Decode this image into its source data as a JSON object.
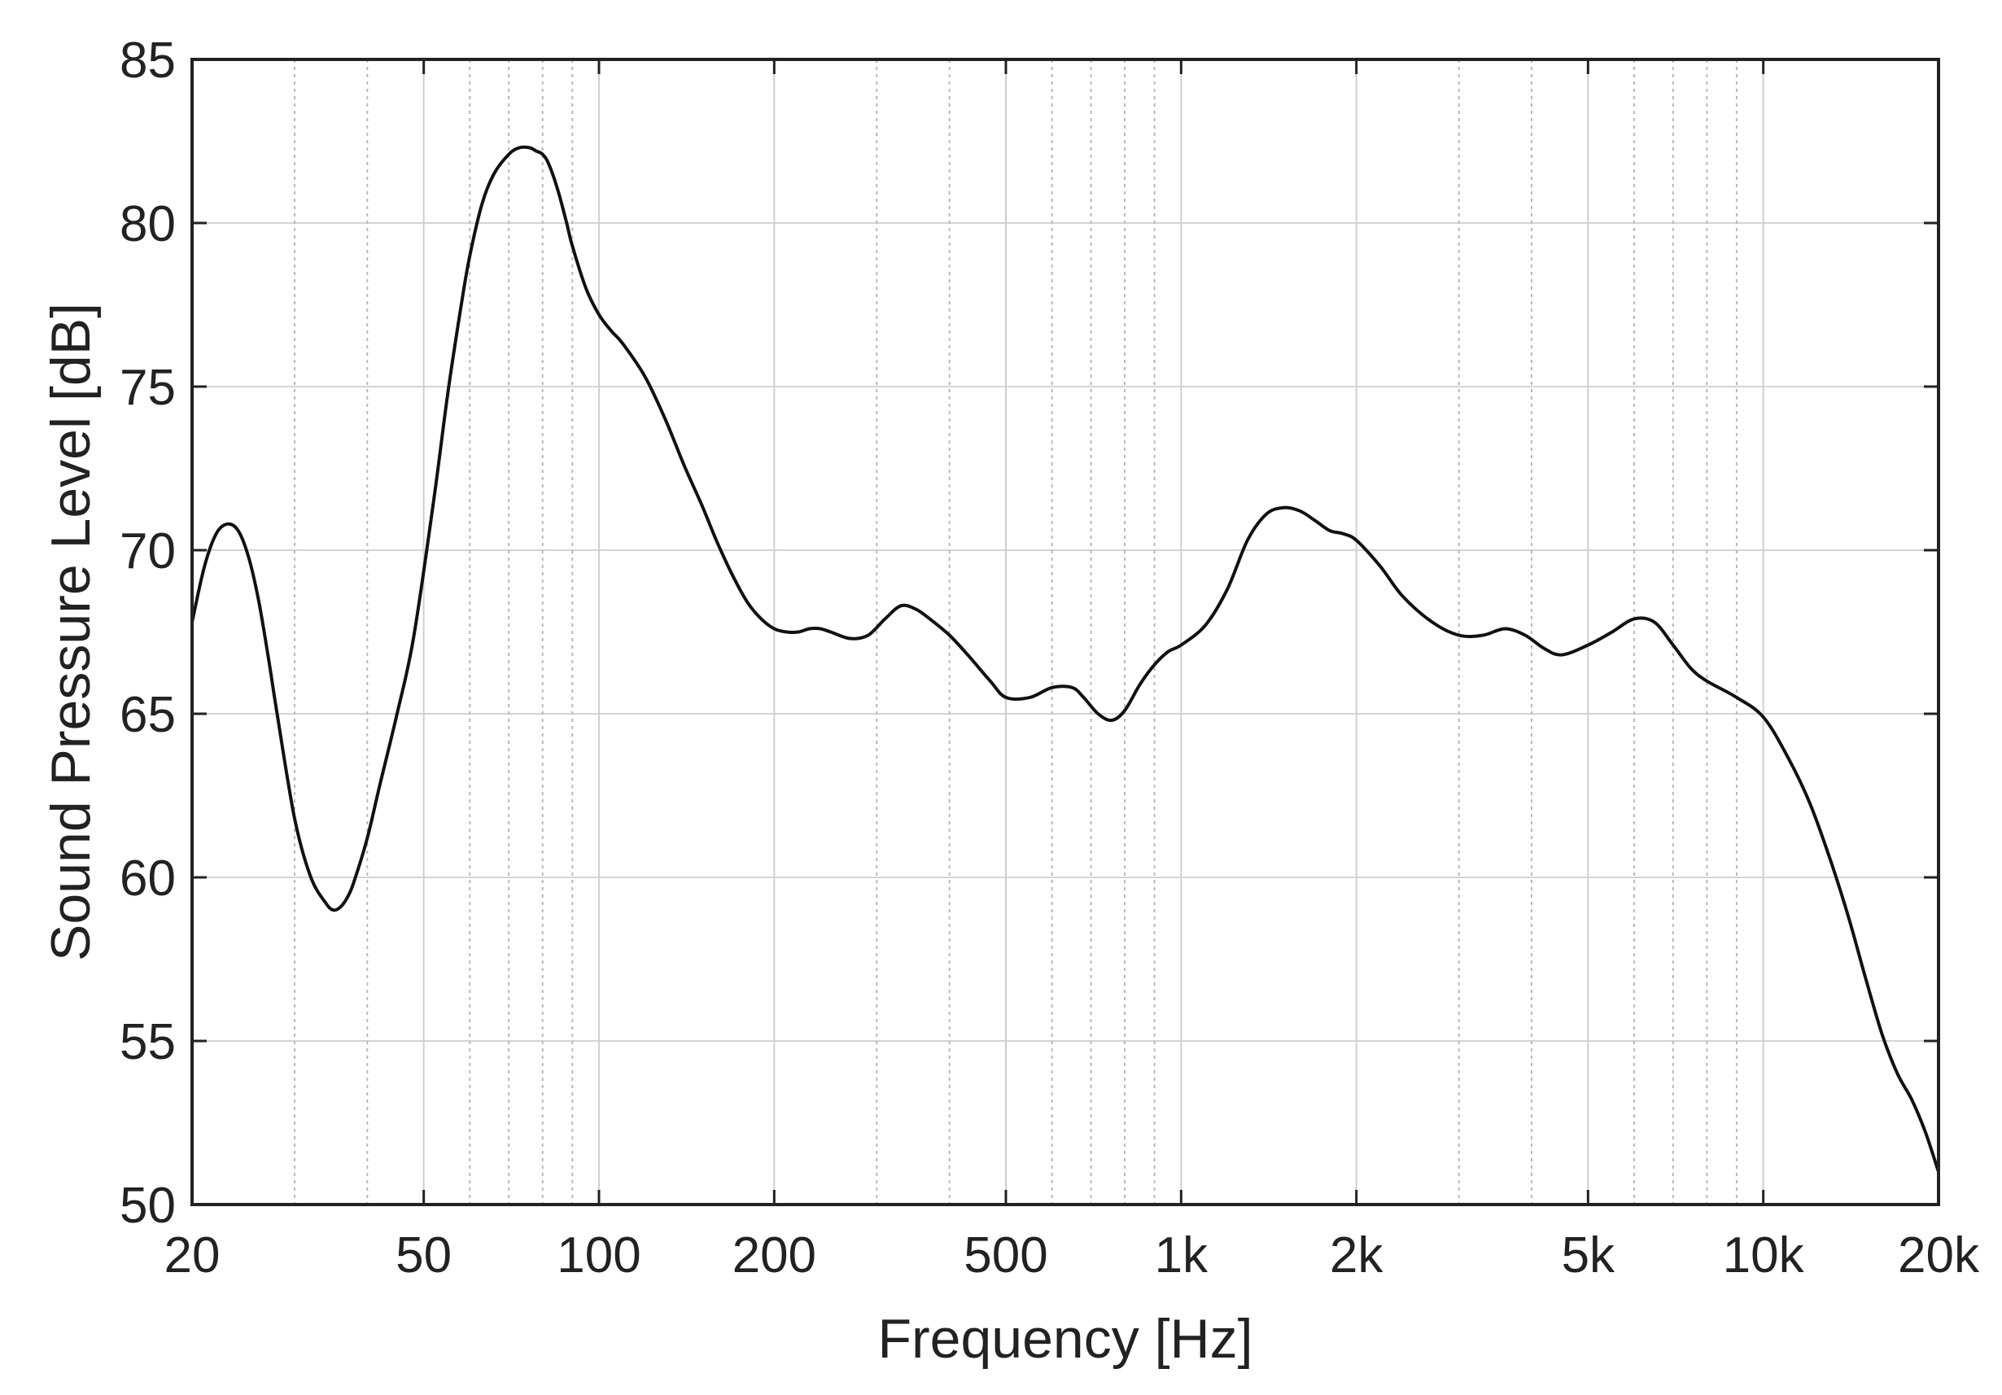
{
  "chart_data": {
    "type": "line",
    "title": "",
    "xlabel": "Frequency [Hz]",
    "ylabel": "Sound Pressure Level [dB]",
    "xscale": "log",
    "xlim": [
      20,
      20000
    ],
    "ylim": [
      50,
      85
    ],
    "grid": true,
    "legend": "none",
    "x_ticks": [
      20,
      50,
      100,
      200,
      500,
      1000,
      2000,
      5000,
      10000,
      20000
    ],
    "x_tick_labels": [
      "20",
      "50",
      "100",
      "200",
      "500",
      "1k",
      "2k",
      "5k",
      "10k",
      "20k"
    ],
    "y_ticks": [
      50,
      55,
      60,
      65,
      70,
      75,
      80,
      85
    ],
    "y_tick_labels": [
      "50",
      "55",
      "60",
      "65",
      "70",
      "75",
      "80",
      "85"
    ],
    "series": [
      {
        "color": "#111111",
        "x": [
          20,
          21,
          22,
          23,
          24,
          25,
          26,
          27,
          28,
          30,
          32,
          34,
          35,
          36,
          37,
          38,
          40,
          42,
          45,
          48,
          52,
          55,
          58,
          60,
          63,
          66,
          70,
          73,
          76,
          78,
          80,
          82,
          85,
          88,
          90,
          95,
          100,
          105,
          110,
          120,
          130,
          140,
          150,
          160,
          170,
          180,
          190,
          200,
          210,
          220,
          230,
          240,
          250,
          270,
          290,
          310,
          330,
          350,
          370,
          400,
          430,
          470,
          500,
          550,
          600,
          650,
          680,
          720,
          760,
          800,
          850,
          900,
          950,
          1000,
          1100,
          1200,
          1300,
          1400,
          1500,
          1600,
          1700,
          1800,
          1900,
          2000,
          2200,
          2400,
          2700,
          3000,
          3300,
          3600,
          3900,
          4200,
          4500,
          5000,
          5500,
          6000,
          6500,
          7000,
          7500,
          8000,
          9000,
          10000,
          11000,
          12000,
          13000,
          14000,
          15000,
          16000,
          17000,
          18000,
          19000,
          20000
        ],
        "y": [
          67.8,
          69.5,
          70.5,
          70.8,
          70.6,
          69.8,
          68.5,
          66.8,
          65.0,
          61.8,
          60.0,
          59.2,
          59.0,
          59.1,
          59.4,
          59.9,
          61.2,
          62.8,
          65.0,
          67.3,
          71.5,
          74.8,
          77.5,
          79.0,
          80.6,
          81.5,
          82.1,
          82.3,
          82.3,
          82.2,
          82.1,
          81.8,
          81.0,
          80.0,
          79.3,
          78.0,
          77.2,
          76.7,
          76.3,
          75.3,
          74.0,
          72.6,
          71.4,
          70.2,
          69.2,
          68.4,
          67.9,
          67.6,
          67.5,
          67.5,
          67.6,
          67.6,
          67.5,
          67.3,
          67.4,
          67.9,
          68.3,
          68.2,
          67.9,
          67.4,
          66.8,
          66.0,
          65.5,
          65.5,
          65.8,
          65.8,
          65.5,
          65.0,
          64.8,
          65.1,
          65.9,
          66.5,
          66.9,
          67.1,
          67.7,
          68.8,
          70.3,
          71.1,
          71.3,
          71.2,
          70.9,
          70.6,
          70.5,
          70.3,
          69.5,
          68.6,
          67.8,
          67.4,
          67.4,
          67.6,
          67.4,
          67.0,
          66.8,
          67.1,
          67.5,
          67.9,
          67.8,
          67.1,
          66.4,
          66.0,
          65.5,
          64.9,
          63.7,
          62.3,
          60.6,
          58.8,
          56.9,
          55.2,
          54.0,
          53.2,
          52.2,
          51.0
        ]
      }
    ]
  }
}
